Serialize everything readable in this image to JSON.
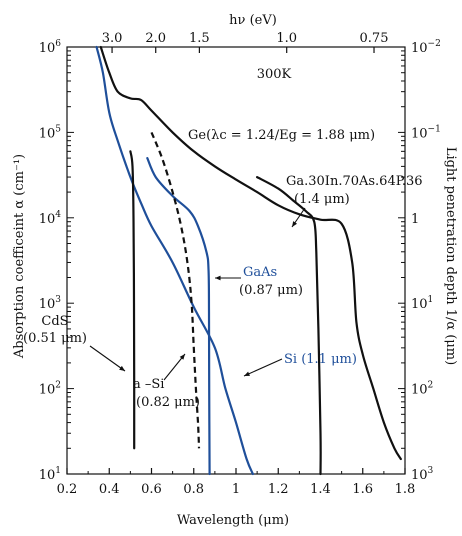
{
  "chart_data": {
    "type": "line",
    "top_axis_label": "hν (eV)",
    "top_ticks": [
      {
        "value": 3.0,
        "label": "3.0"
      },
      {
        "value": 2.0,
        "label": "2.0"
      },
      {
        "value": 1.5,
        "label": "1.5"
      },
      {
        "value": 1.0,
        "label": "1.0"
      },
      {
        "value": 0.75,
        "label": "0.75"
      }
    ],
    "xlabel": "Wavelength (μm)",
    "xlim": [
      0.2,
      1.8
    ],
    "x_ticks": [
      0.2,
      0.4,
      0.6,
      0.8,
      1,
      1.2,
      1.4,
      1.6,
      1.8
    ],
    "x_tick_labels": [
      "0.2",
      "0.4",
      "0.6",
      "0.8",
      "1",
      "1.2",
      "1.4",
      "1.6",
      "1.8"
    ],
    "ylabel": "Absorption coefficeint α (cm⁻¹)",
    "ylim": [
      10,
      1000000
    ],
    "yscale": "log",
    "y_ticks": [
      {
        "value": 10,
        "base": "10",
        "exp": "1"
      },
      {
        "value": 100,
        "base": "10",
        "exp": "2"
      },
      {
        "value": 1000,
        "base": "10",
        "exp": "3"
      },
      {
        "value": 10000,
        "base": "10",
        "exp": "4"
      },
      {
        "value": 100000,
        "base": "10",
        "exp": "5"
      },
      {
        "value": 1000000,
        "base": "10",
        "exp": "6"
      }
    ],
    "right_ylabel": "Light penetration depth 1/α  (μm)",
    "right_ticks": [
      {
        "value": 10,
        "base": "10",
        "exp": "3"
      },
      {
        "value": 100,
        "base": "10",
        "exp": "2"
      },
      {
        "value": 1000,
        "base": "10",
        "exp": "1"
      },
      {
        "value": 10000,
        "base": "1",
        "exp": ""
      },
      {
        "value": 100000,
        "base": "10",
        "exp": "−1"
      },
      {
        "value": 1000000,
        "base": "10",
        "exp": "−2"
      }
    ],
    "temperature_label": "300K",
    "grid": false,
    "series": [
      {
        "name": "Ge",
        "style": "solid",
        "color": "#111111",
        "points": [
          [
            0.36,
            1000000
          ],
          [
            0.4,
            500000
          ],
          [
            0.44,
            300000
          ],
          [
            0.5,
            250000
          ],
          [
            0.55,
            240000
          ],
          [
            0.6,
            180000
          ],
          [
            0.7,
            100000
          ],
          [
            0.8,
            60000
          ],
          [
            0.9,
            40000
          ],
          [
            1.0,
            28000
          ],
          [
            1.1,
            20000
          ],
          [
            1.2,
            14000
          ],
          [
            1.3,
            11000
          ],
          [
            1.4,
            9500
          ],
          [
            1.5,
            8500
          ],
          [
            1.55,
            3000
          ],
          [
            1.57,
            600
          ],
          [
            1.6,
            250
          ],
          [
            1.65,
            100
          ],
          [
            1.7,
            40
          ],
          [
            1.75,
            20
          ],
          [
            1.78,
            15
          ]
        ]
      },
      {
        "name": "Ga.30In.70As.64P.36",
        "style": "solid",
        "color": "#111111",
        "points": [
          [
            1.1,
            30000
          ],
          [
            1.2,
            22000
          ],
          [
            1.27,
            16000
          ],
          [
            1.33,
            12000
          ],
          [
            1.37,
            9000
          ],
          [
            1.38,
            4000
          ],
          [
            1.39,
            500
          ],
          [
            1.4,
            30
          ],
          [
            1.4,
            10
          ]
        ]
      },
      {
        "name": "GaAs",
        "style": "solid",
        "color": "#1f4f9a",
        "points": [
          [
            0.58,
            50000
          ],
          [
            0.62,
            30000
          ],
          [
            0.7,
            18000
          ],
          [
            0.78,
            12000
          ],
          [
            0.82,
            8000
          ],
          [
            0.86,
            4000
          ],
          [
            0.87,
            2500
          ],
          [
            0.872,
            800
          ],
          [
            0.873,
            100
          ],
          [
            0.875,
            10
          ]
        ]
      },
      {
        "name": "Si",
        "style": "solid",
        "color": "#1f4f9a",
        "points": [
          [
            0.34,
            1000000
          ],
          [
            0.37,
            500000
          ],
          [
            0.4,
            170000
          ],
          [
            0.44,
            80000
          ],
          [
            0.5,
            30000
          ],
          [
            0.55,
            15000
          ],
          [
            0.6,
            8000
          ],
          [
            0.7,
            3000
          ],
          [
            0.8,
            900
          ],
          [
            0.9,
            300
          ],
          [
            0.95,
            100
          ],
          [
            1.0,
            40
          ],
          [
            1.05,
            15
          ],
          [
            1.08,
            10
          ]
        ]
      },
      {
        "name": "a-Si",
        "style": "dashed",
        "color": "#111111",
        "points": [
          [
            0.6,
            100000
          ],
          [
            0.65,
            50000
          ],
          [
            0.7,
            20000
          ],
          [
            0.74,
            8000
          ],
          [
            0.77,
            3000
          ],
          [
            0.79,
            1000
          ],
          [
            0.8,
            300
          ],
          [
            0.81,
            100
          ],
          [
            0.82,
            40
          ],
          [
            0.825,
            20
          ]
        ]
      },
      {
        "name": "CdS",
        "style": "solid",
        "color": "#111111",
        "points": [
          [
            0.5,
            60000
          ],
          [
            0.51,
            40000
          ],
          [
            0.515,
            10000
          ],
          [
            0.517,
            1000
          ],
          [
            0.518,
            100
          ],
          [
            0.518,
            20
          ]
        ]
      }
    ],
    "annotations": [
      {
        "text": "Ge(λc = 1.24/Eg = 1.88 μm)"
      },
      {
        "text": "Ga.30In.70As.64P.36"
      },
      {
        "text": "(1.4 μm)"
      },
      {
        "text": "GaAs"
      },
      {
        "text": "(0.87 μm)"
      },
      {
        "text": "CdS"
      },
      {
        "text": "(0.51 μm)"
      },
      {
        "text": "Si (1.1 μm)"
      },
      {
        "text": "a –Si"
      },
      {
        "text": "(0.82 μm)"
      }
    ]
  }
}
